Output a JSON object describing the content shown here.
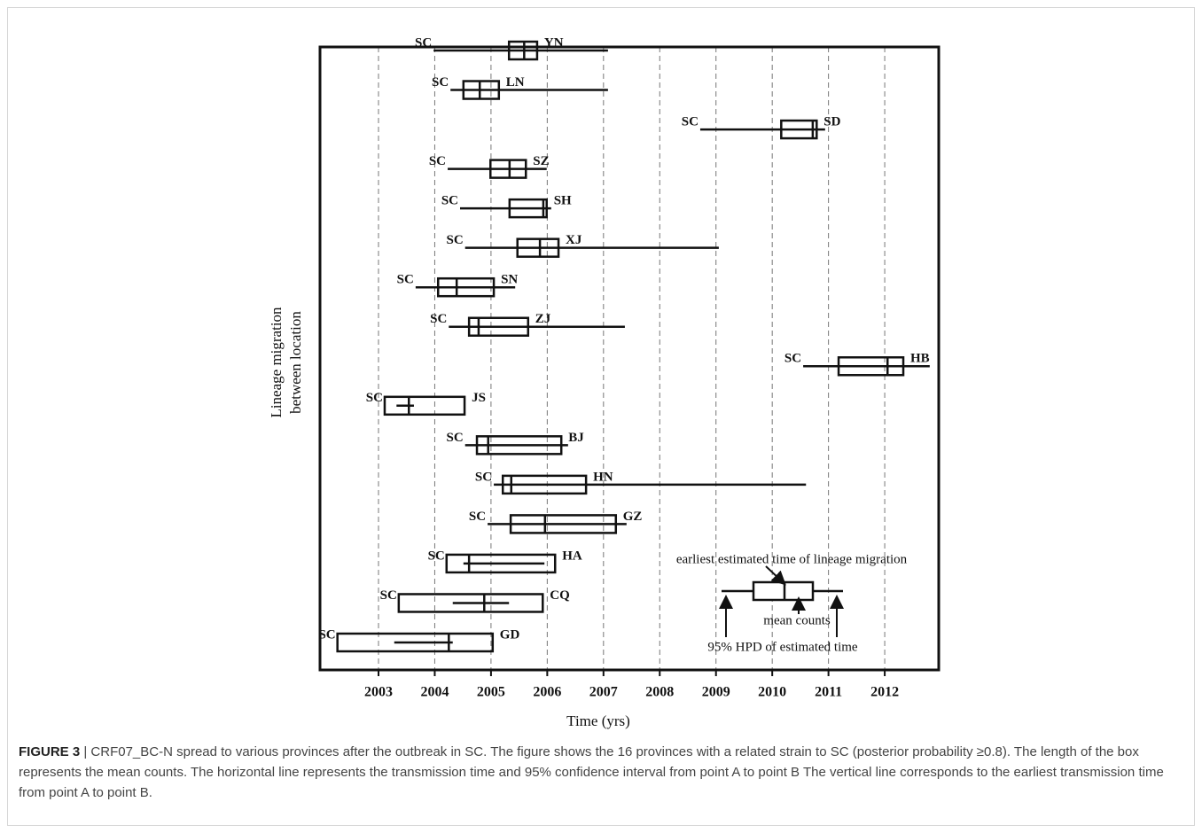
{
  "chart_data": {
    "type": "box",
    "xlabel": "Time (yrs)",
    "ylabel": [
      "Lineage migration",
      "between location"
    ],
    "xlim": [
      2001.96,
      2012.96
    ],
    "xticks": [
      2003,
      2004,
      2005,
      2006,
      2007,
      2008,
      2009,
      2010,
      2011,
      2012
    ],
    "grid": true,
    "color": "#111111",
    "series": [
      {
        "from": "SC",
        "name": "YN",
        "whisker": [
          2003.98,
          2007.08
        ],
        "box": [
          2005.32,
          2005.82
        ],
        "mean": 2005.59
      },
      {
        "from": "SC",
        "name": "LN",
        "whisker": [
          2004.28,
          2007.08
        ],
        "box": [
          2004.51,
          2005.14
        ],
        "mean": 2004.8
      },
      {
        "from": "SC",
        "name": "SD",
        "whisker": [
          2008.72,
          2010.94
        ],
        "box": [
          2010.16,
          2010.79
        ],
        "mean": 2010.72
      },
      {
        "from": "SC",
        "name": "SZ",
        "whisker": [
          2004.23,
          2005.99
        ],
        "box": [
          2004.99,
          2005.62
        ],
        "mean": 2005.33
      },
      {
        "from": "SC",
        "name": "SH",
        "whisker": [
          2004.45,
          2006.07
        ],
        "box": [
          2005.33,
          2005.99
        ],
        "mean": 2005.93
      },
      {
        "from": "SC",
        "name": "XJ",
        "whisker": [
          2004.54,
          2009.05
        ],
        "box": [
          2005.47,
          2006.2
        ],
        "mean": 2005.87
      },
      {
        "from": "SC",
        "name": "SN",
        "whisker": [
          2003.66,
          2005.43
        ],
        "box": [
          2004.06,
          2005.05
        ],
        "mean": 2004.39
      },
      {
        "from": "SC",
        "name": "ZJ",
        "whisker": [
          2004.25,
          2007.38
        ],
        "box": [
          2004.61,
          2005.66
        ],
        "mean": 2004.78
      },
      {
        "from": "SC",
        "name": "HB",
        "whisker": [
          2010.55,
          2012.8
        ],
        "box": [
          2011.18,
          2012.33
        ],
        "mean": 2012.05
      },
      {
        "from": "SC",
        "name": "JS",
        "whisker": [
          2003.32,
          2003.63
        ],
        "box": [
          2003.11,
          2004.53
        ],
        "mean": 2003.54
      },
      {
        "from": "SC",
        "name": "BJ",
        "whisker": [
          2004.54,
          2006.37
        ],
        "box": [
          2004.75,
          2006.25
        ],
        "mean": 2004.95
      },
      {
        "from": "SC",
        "name": "HN",
        "whisker": [
          2005.05,
          2010.6
        ],
        "box": [
          2005.21,
          2006.69
        ],
        "mean": 2005.36
      },
      {
        "from": "SC",
        "name": "GZ",
        "whisker": [
          2004.94,
          2007.41
        ],
        "box": [
          2005.35,
          2007.22
        ],
        "mean": 2005.96
      },
      {
        "from": "SC",
        "name": "HA",
        "whisker": [
          2004.51,
          2005.95
        ],
        "box": [
          2004.21,
          2006.14
        ],
        "mean": 2004.61
      },
      {
        "from": "SC",
        "name": "CQ",
        "whisker": [
          2004.32,
          2005.32
        ],
        "box": [
          2003.36,
          2005.92
        ],
        "mean": 2004.88
      },
      {
        "from": "SC",
        "name": "GD",
        "whisker": [
          2003.28,
          2004.32
        ],
        "box": [
          2002.27,
          2005.03
        ],
        "mean": 2004.25
      }
    ],
    "annotations": [
      "earliest estimated time of lineage migration",
      "mean counts",
      "95% HPD of estimated time"
    ]
  },
  "caption": {
    "label": "FIGURE 3",
    "text": "| CRF07_BC-N spread to various provinces after the outbreak in SC. The figure shows the 16 provinces with a related strain to SC (posterior probability ≥0.8). The length of the box represents the mean counts. The horizontal line represents the transmission time and 95% confidence interval from point A to point B The vertical line corresponds to the earliest transmission time from point A to point B."
  }
}
